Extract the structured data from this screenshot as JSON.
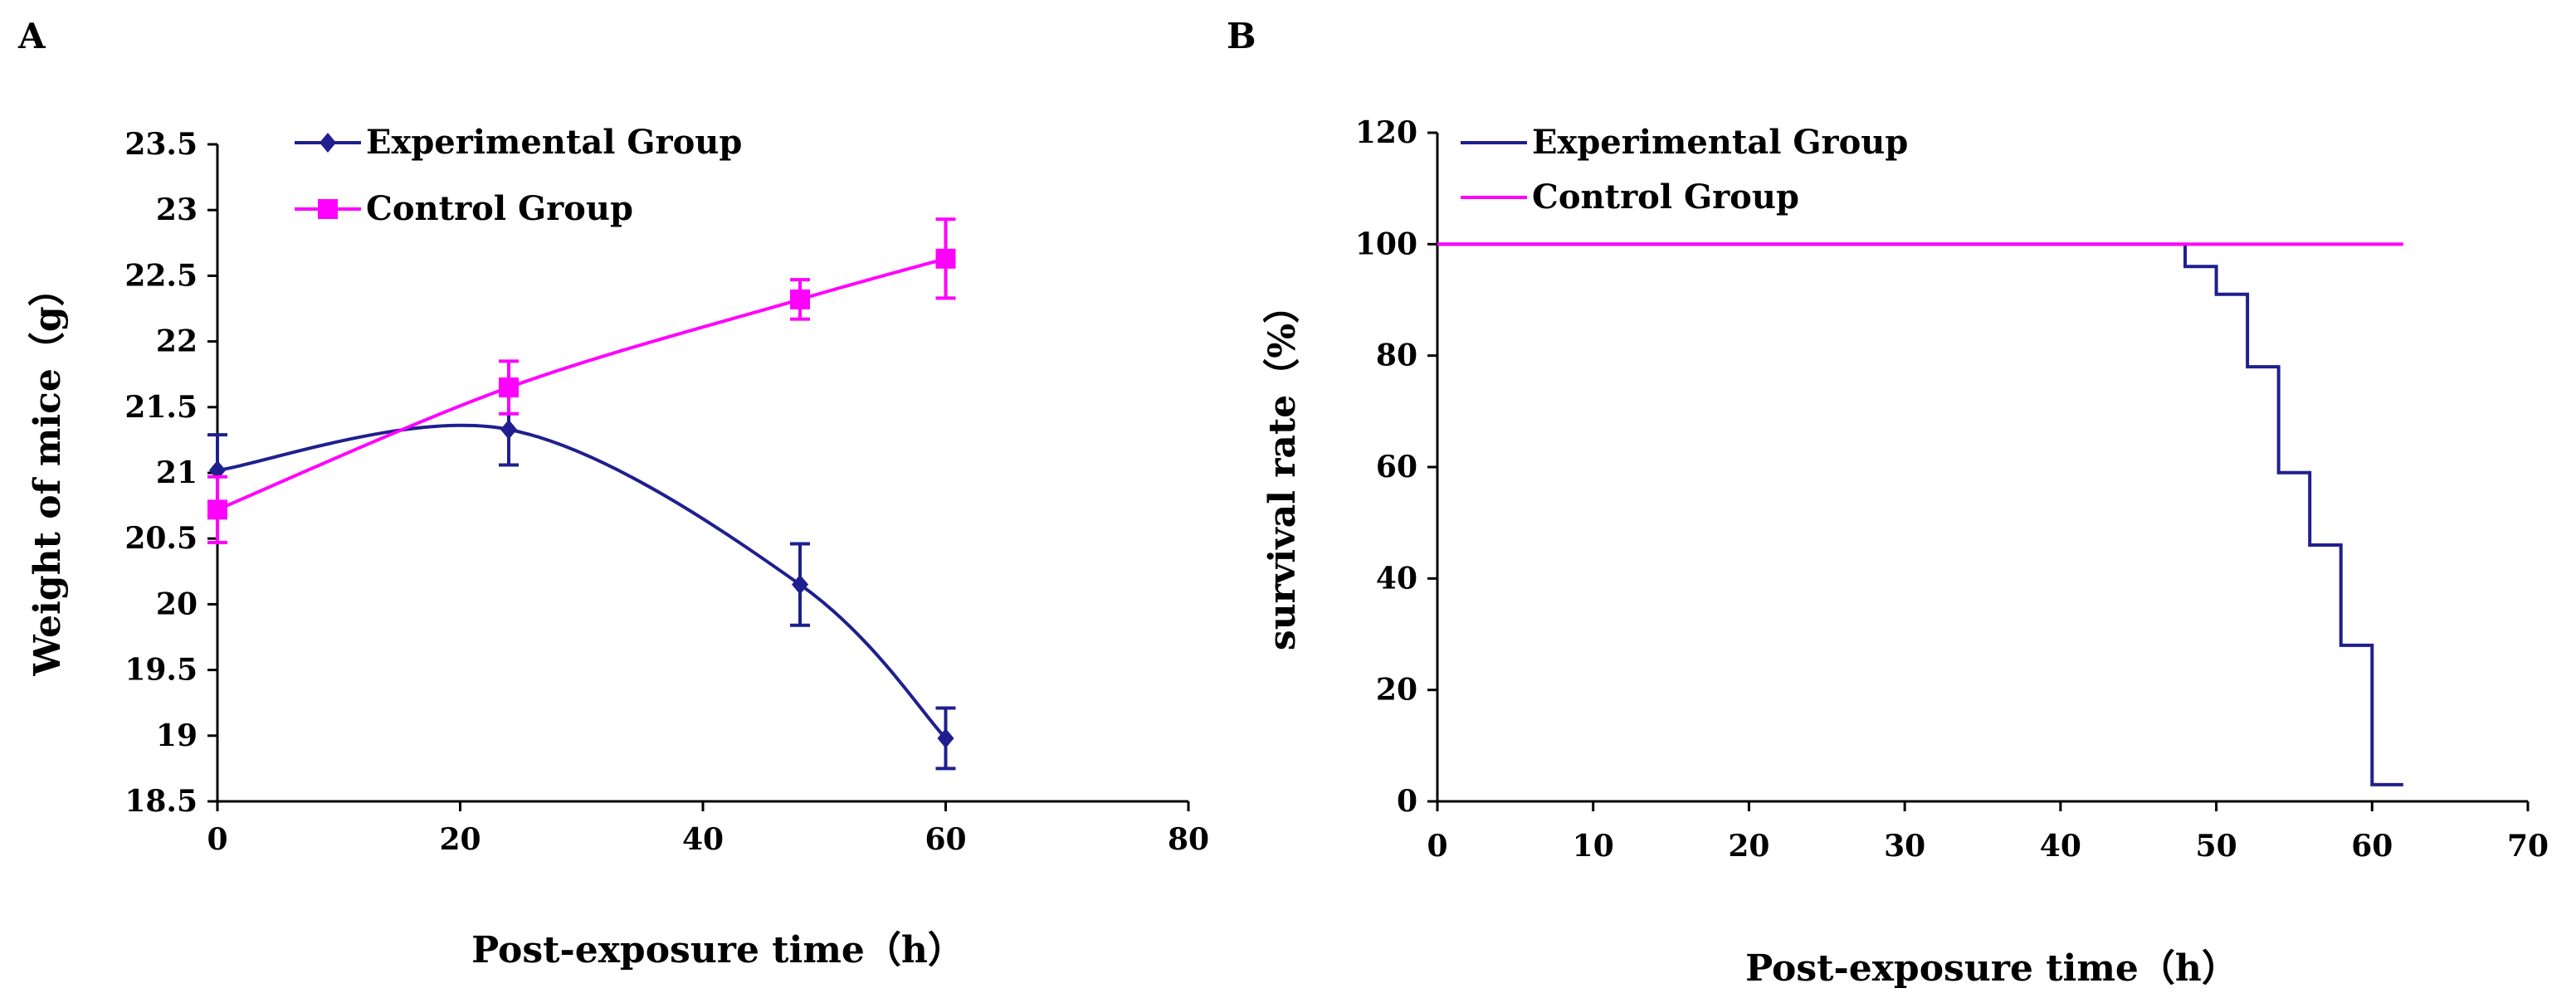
{
  "chart_data": [
    {
      "panel_label": "A",
      "type": "line",
      "xlabel": "Post-exposure time（h）",
      "ylabel": "Weight of mice（g）",
      "xlim": [
        0,
        80
      ],
      "ylim": [
        18.5,
        23.5
      ],
      "xticks": [
        "0",
        "20",
        "40",
        "60",
        "80"
      ],
      "yticks": [
        "18.5",
        "19",
        "19.5",
        "20",
        "20.5",
        "21",
        "21.5",
        "22",
        "22.5",
        "23",
        "23.5"
      ],
      "legend_position": "top-left",
      "grid": false,
      "series": [
        {
          "name": "Experimental Group",
          "color": "#1f1f8f",
          "marker": "diamond",
          "smooth": true,
          "x": [
            0,
            24,
            48,
            60
          ],
          "y": [
            21.02,
            21.33,
            20.15,
            18.98
          ],
          "err": [
            0.27,
            0.27,
            0.31,
            0.23
          ]
        },
        {
          "name": "Control Group",
          "color": "#ff00ff",
          "marker": "square",
          "smooth": true,
          "x": [
            0,
            24,
            48,
            60
          ],
          "y": [
            20.72,
            21.65,
            22.32,
            22.63
          ],
          "err": [
            0.25,
            0.2,
            0.15,
            0.3
          ]
        }
      ]
    },
    {
      "panel_label": "B",
      "type": "line",
      "xlabel": "Post-exposure time（h）",
      "ylabel": "survival rate（%）",
      "xlim": [
        0,
        70
      ],
      "ylim": [
        0,
        120
      ],
      "xticks": [
        "0",
        "10",
        "20",
        "30",
        "40",
        "50",
        "60",
        "70"
      ],
      "yticks": [
        "0",
        "20",
        "40",
        "60",
        "80",
        "100",
        "120"
      ],
      "legend_position": "top-left",
      "grid": false,
      "series": [
        {
          "name": "Experimental Group",
          "color": "#1f1f8f",
          "step": true,
          "x": [
            0,
            48,
            50,
            52,
            54,
            56,
            58,
            60,
            62
          ],
          "y": [
            100,
            96,
            91,
            78,
            59,
            46,
            28,
            3,
            3
          ]
        },
        {
          "name": "Control Group",
          "color": "#ff00ff",
          "step": true,
          "x": [
            0,
            62
          ],
          "y": [
            100,
            100
          ]
        }
      ]
    }
  ]
}
